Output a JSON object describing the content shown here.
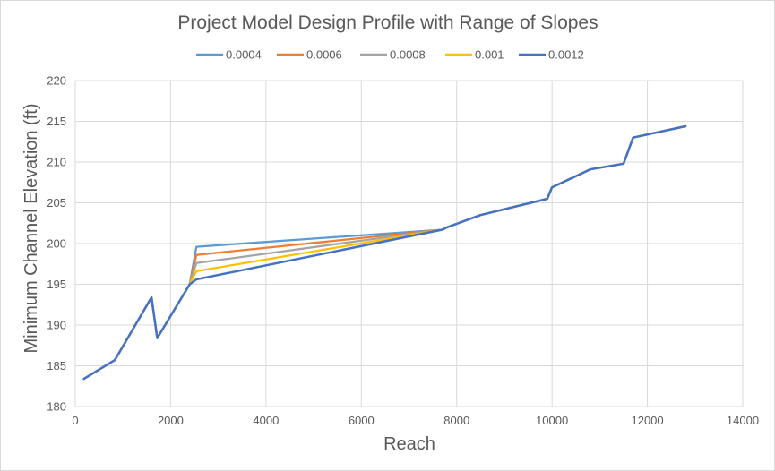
{
  "chart_data": {
    "type": "line",
    "title": "Project Model Design Profile with Range of Slopes",
    "xlabel": "Reach",
    "ylabel": "Minimum Channel Elevation (ft)",
    "xlim": [
      0,
      14000
    ],
    "ylim": [
      180,
      220
    ],
    "x_ticks": [
      0,
      2000,
      4000,
      6000,
      8000,
      10000,
      12000,
      14000
    ],
    "y_ticks": [
      180,
      185,
      190,
      195,
      200,
      205,
      210,
      215,
      220
    ],
    "grid": true,
    "legend_position": "top",
    "series": [
      {
        "name": "0.0004",
        "color": "#5b9bd5",
        "x": [
          180,
          830,
          1600,
          1720,
          2400,
          2540,
          7700,
          7800,
          8500,
          9900,
          10000,
          10800,
          11500,
          11700,
          12800
        ],
        "y": [
          183.4,
          185.7,
          193.4,
          188.4,
          195.0,
          199.6,
          201.7,
          202.0,
          203.5,
          205.5,
          206.9,
          209.1,
          209.8,
          213.0,
          214.4
        ]
      },
      {
        "name": "0.0006",
        "color": "#ed7d31",
        "x": [
          180,
          830,
          1600,
          1720,
          2400,
          2540,
          7700,
          7800,
          8500,
          9900,
          10000,
          10800,
          11500,
          11700,
          12800
        ],
        "y": [
          183.4,
          185.7,
          193.4,
          188.4,
          195.0,
          198.6,
          201.7,
          202.0,
          203.5,
          205.5,
          206.9,
          209.1,
          209.8,
          213.0,
          214.4
        ]
      },
      {
        "name": "0.0008",
        "color": "#a5a5a5",
        "x": [
          180,
          830,
          1600,
          1720,
          2400,
          2540,
          7700,
          7800,
          8500,
          9900,
          10000,
          10800,
          11500,
          11700,
          12800
        ],
        "y": [
          183.4,
          185.7,
          193.4,
          188.4,
          195.0,
          197.6,
          201.7,
          202.0,
          203.5,
          205.5,
          206.9,
          209.1,
          209.8,
          213.0,
          214.4
        ]
      },
      {
        "name": "0.001",
        "color": "#ffc000",
        "x": [
          180,
          830,
          1600,
          1720,
          2400,
          2540,
          7700,
          7800,
          8500,
          9900,
          10000,
          10800,
          11500,
          11700,
          12800
        ],
        "y": [
          183.4,
          185.7,
          193.4,
          188.4,
          195.0,
          196.6,
          201.7,
          202.0,
          203.5,
          205.5,
          206.9,
          209.1,
          209.8,
          213.0,
          214.4
        ]
      },
      {
        "name": "0.0012",
        "color": "#4472c4",
        "x": [
          180,
          830,
          1600,
          1720,
          2400,
          2540,
          7700,
          7800,
          8500,
          9900,
          10000,
          10800,
          11500,
          11700,
          12800
        ],
        "y": [
          183.4,
          185.7,
          193.4,
          188.4,
          195.0,
          195.6,
          201.7,
          202.0,
          203.5,
          205.5,
          206.9,
          209.1,
          209.8,
          213.0,
          214.4
        ]
      }
    ]
  }
}
